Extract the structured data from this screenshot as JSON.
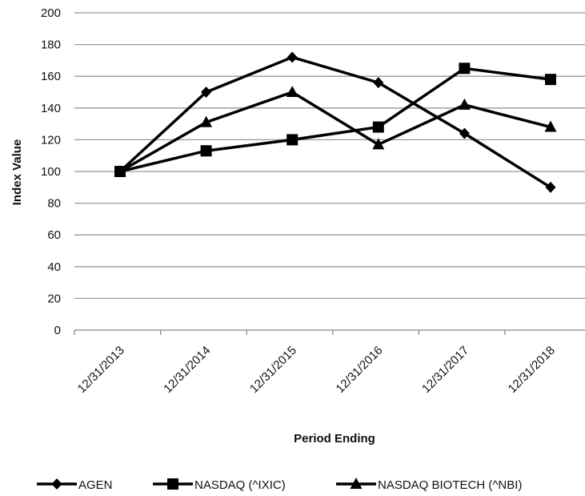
{
  "chart_data": {
    "type": "line",
    "categories": [
      "12/31/2013",
      "12/31/2014",
      "12/31/2015",
      "12/31/2016",
      "12/31/2017",
      "12/31/2018"
    ],
    "series": [
      {
        "name": "AGEN",
        "marker": "diamond",
        "values": [
          100,
          150,
          172,
          156,
          124,
          90
        ]
      },
      {
        "name": "NASDAQ (^IXIC)",
        "marker": "square",
        "values": [
          100,
          113,
          120,
          128,
          165,
          158
        ]
      },
      {
        "name": "NASDAQ BIOTECH (^NBI)",
        "marker": "triangle",
        "values": [
          100,
          131,
          150,
          117,
          142,
          128
        ]
      }
    ],
    "xlabel": "Period Ending",
    "ylabel": "Index Value",
    "ylim": [
      0,
      200
    ],
    "yticks": [
      0,
      20,
      40,
      60,
      80,
      100,
      120,
      140,
      160,
      180,
      200
    ],
    "grid": true,
    "legend_position": "bottom",
    "colors": {
      "line": "#000000",
      "grid": "#999999",
      "axis": "#888888"
    }
  }
}
